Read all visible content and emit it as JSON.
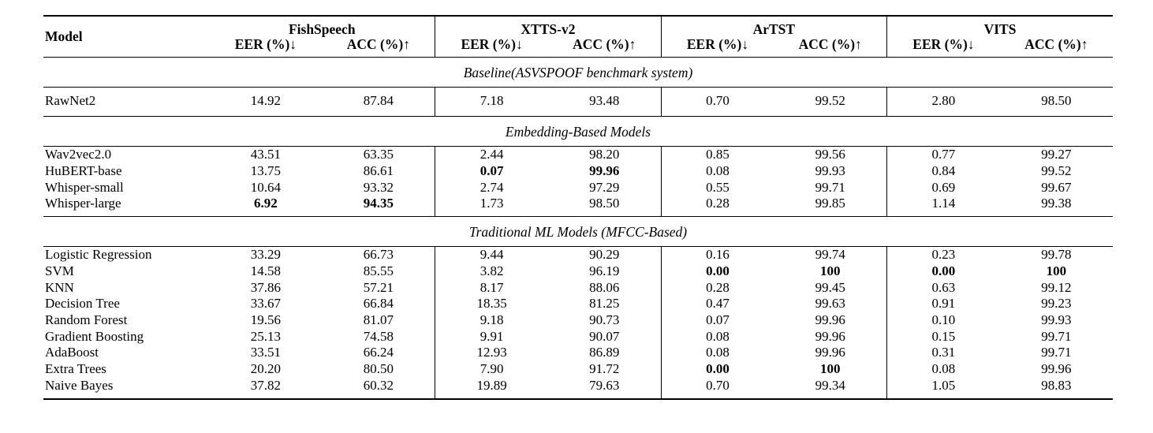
{
  "table": {
    "model_header": "Model",
    "groups": [
      {
        "name": "FishSpeech",
        "cols": [
          "EER (%)↓",
          "ACC (%)↑"
        ]
      },
      {
        "name": "XTTS-v2",
        "cols": [
          "EER (%)↓",
          "ACC (%)↑"
        ]
      },
      {
        "name": "ArTST",
        "cols": [
          "EER (%)↓",
          "ACC (%)↑"
        ]
      },
      {
        "name": "VITS",
        "cols": [
          "EER (%)↓",
          "ACC (%)↑"
        ]
      }
    ],
    "sections": [
      {
        "title": "Baseline(ASVSPOOF benchmark system)",
        "rows": [
          {
            "model": "RawNet2",
            "vals": [
              "14.92",
              "87.84",
              "7.18",
              "93.48",
              "0.70",
              "99.52",
              "2.80",
              "98.50"
            ]
          }
        ]
      },
      {
        "title": "Embedding-Based Models",
        "rows": [
          {
            "model": "Wav2vec2.0",
            "vals": [
              "43.51",
              "63.35",
              "2.44",
              "98.20",
              "0.85",
              "99.56",
              "0.77",
              "99.27"
            ]
          },
          {
            "model": "HuBERT-base",
            "vals": [
              "13.75",
              "86.61",
              "0.07",
              "99.96",
              "0.08",
              "99.93",
              "0.84",
              "99.52"
            ]
          },
          {
            "model": "Whisper-small",
            "vals": [
              "10.64",
              "93.32",
              "2.74",
              "97.29",
              "0.55",
              "99.71",
              "0.69",
              "99.67"
            ]
          },
          {
            "model": "Whisper-large",
            "vals": [
              "6.92",
              "94.35",
              "1.73",
              "98.50",
              "0.28",
              "99.85",
              "1.14",
              "99.38"
            ]
          }
        ]
      },
      {
        "title": "Traditional ML Models (MFCC-Based)",
        "rows": [
          {
            "model": "Logistic Regression",
            "vals": [
              "33.29",
              "66.73",
              "9.44",
              "90.29",
              "0.16",
              "99.74",
              "0.23",
              "99.78"
            ]
          },
          {
            "model": "SVM",
            "vals": [
              "14.58",
              "85.55",
              "3.82",
              "96.19",
              "0.00",
              "100",
              "0.00",
              "100"
            ]
          },
          {
            "model": "KNN",
            "vals": [
              "37.86",
              "57.21",
              "8.17",
              "88.06",
              "0.28",
              "99.45",
              "0.63",
              "99.12"
            ]
          },
          {
            "model": "Decision Tree",
            "vals": [
              "33.67",
              "66.84",
              "18.35",
              "81.25",
              "0.47",
              "99.63",
              "0.91",
              "99.23"
            ]
          },
          {
            "model": "Random Forest",
            "vals": [
              "19.56",
              "81.07",
              "9.18",
              "90.73",
              "0.07",
              "99.96",
              "0.10",
              "99.93"
            ]
          },
          {
            "model": "Gradient Boosting",
            "vals": [
              "25.13",
              "74.58",
              "9.91",
              "90.07",
              "0.08",
              "99.96",
              "0.15",
              "99.71"
            ]
          },
          {
            "model": "AdaBoost",
            "vals": [
              "33.51",
              "66.24",
              "12.93",
              "86.89",
              "0.08",
              "99.96",
              "0.31",
              "99.71"
            ]
          },
          {
            "model": "Extra Trees",
            "vals": [
              "20.20",
              "80.50",
              "7.90",
              "91.72",
              "0.00",
              "100",
              "0.08",
              "99.96"
            ]
          },
          {
            "model": "Naive Bayes",
            "vals": [
              "37.82",
              "60.32",
              "19.89",
              "79.63",
              "0.70",
              "99.34",
              "1.05",
              "98.83"
            ]
          }
        ]
      }
    ]
  }
}
